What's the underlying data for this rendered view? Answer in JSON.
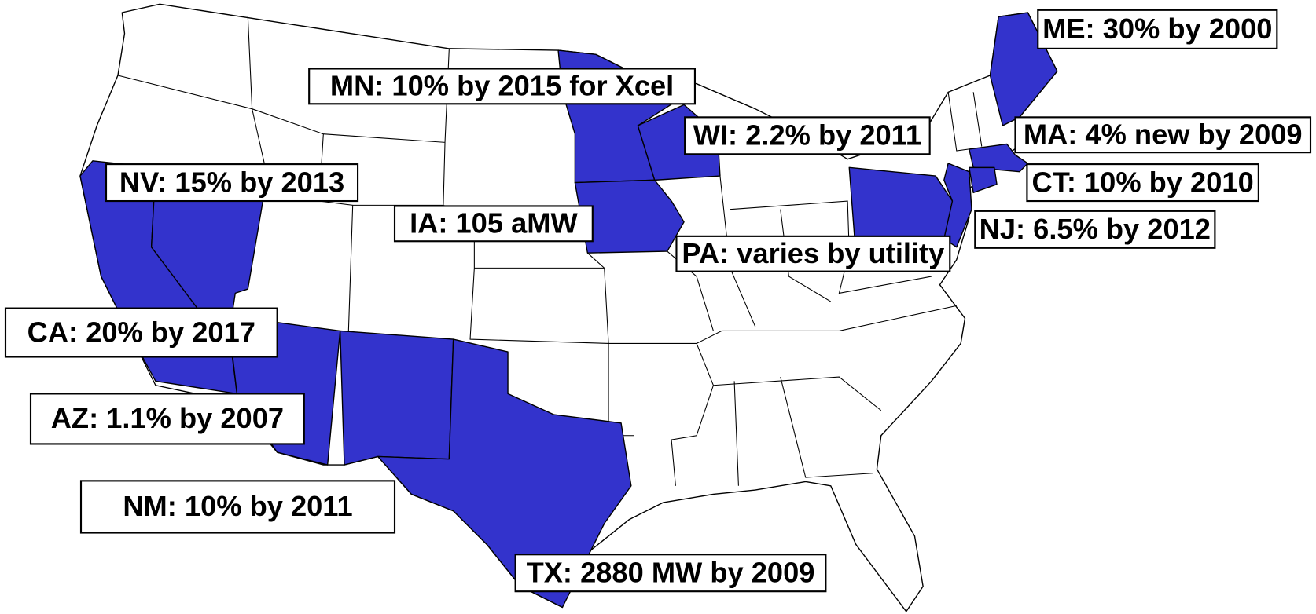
{
  "annotations": [
    "ME: 30% by 2000",
    "MN: 10% by 2015 for Xcel",
    "WI: 2.2% by 2011",
    "MA: 4% new by 2009",
    "NV: 15% by 2013",
    "CT: 10% by 2010",
    "IA: 105 aMW",
    "NJ: 6.5% by 2012",
    "PA: varies by utility",
    "CA: 20% by 2017",
    "AZ: 1.1% by 2007",
    "NM: 10% by 2011",
    "TX: 2880 MW by 2009"
  ]
}
